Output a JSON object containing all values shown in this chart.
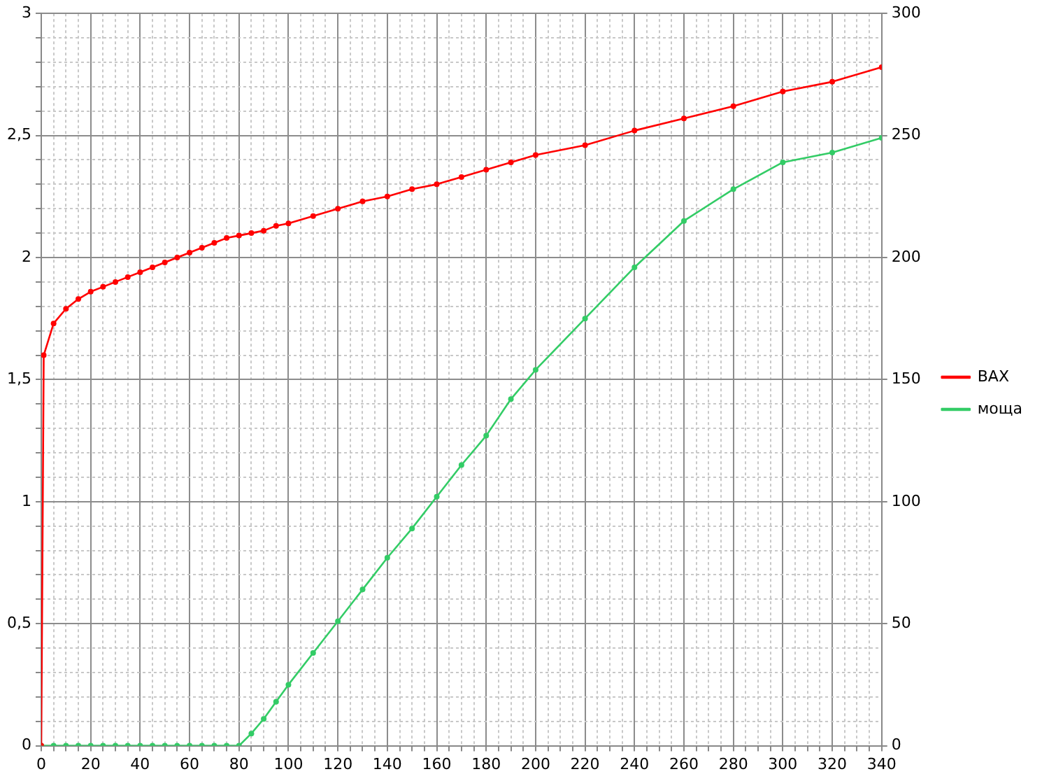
{
  "chart_data": {
    "type": "line",
    "legend": "right",
    "grid": true,
    "marker": "circle",
    "line_style": "solid",
    "xlim": [
      0,
      340
    ],
    "xticks": [
      0,
      {
        "value": 5,
        "label": null
      },
      {
        "value": 10,
        "label": null
      },
      {
        "value": 15,
        "label": null
      },
      20,
      {
        "value": 25,
        "label": null
      },
      {
        "value": 30,
        "label": null
      },
      {
        "value": 35,
        "label": null
      },
      40,
      {
        "value": 45,
        "label": null
      },
      {
        "value": 50,
        "label": null
      },
      {
        "value": 55,
        "label": null
      },
      60,
      {
        "value": 65,
        "label": null
      },
      {
        "value": 70,
        "label": null
      },
      {
        "value": 75,
        "label": null
      },
      80,
      {
        "value": 85,
        "label": null
      },
      {
        "value": 90,
        "label": null
      },
      {
        "value": 95,
        "label": null
      },
      100,
      {
        "value": 105,
        "label": null
      },
      {
        "value": 110,
        "label": null
      },
      {
        "value": 115,
        "label": null
      },
      120,
      {
        "value": 125,
        "label": null
      },
      {
        "value": 130,
        "label": null
      },
      {
        "value": 135,
        "label": null
      },
      140,
      {
        "value": 145,
        "label": null
      },
      {
        "value": 150,
        "label": null
      },
      {
        "value": 155,
        "label": null
      },
      160,
      {
        "value": 165,
        "label": null
      },
      {
        "value": 170,
        "label": null
      },
      {
        "value": 175,
        "label": null
      },
      180,
      {
        "value": 185,
        "label": null
      },
      {
        "value": 190,
        "label": null
      },
      {
        "value": 195,
        "label": null
      },
      200,
      {
        "value": 205,
        "label": null
      },
      {
        "value": 210,
        "label": null
      },
      {
        "value": 215,
        "label": null
      },
      220,
      {
        "value": 225,
        "label": null
      },
      {
        "value": 230,
        "label": null
      },
      {
        "value": 235,
        "label": null
      },
      240,
      {
        "value": 245,
        "label": null
      },
      {
        "value": 250,
        "label": null
      },
      {
        "value": 255,
        "label": null
      },
      260,
      {
        "value": 265,
        "label": null
      },
      {
        "value": 270,
        "label": null
      },
      {
        "value": 275,
        "label": null
      },
      280,
      {
        "value": 285,
        "label": null
      },
      {
        "value": 290,
        "label": null
      },
      {
        "value": 295,
        "label": null
      },
      300,
      {
        "value": 305,
        "label": null
      },
      {
        "value": 310,
        "label": null
      },
      {
        "value": 315,
        "label": null
      },
      320,
      {
        "value": 325,
        "label": null
      },
      {
        "value": 330,
        "label": null
      },
      {
        "value": 335,
        "label": null
      },
      340
    ],
    "ylim": [
      0,
      3
    ],
    "yticks": [
      0,
      {
        "value": 0.1,
        "label": null
      },
      {
        "value": 0.2,
        "label": null
      },
      {
        "value": 0.3,
        "label": null
      },
      {
        "value": 0.4,
        "label": null
      },
      {
        "value": 0.5,
        "label": "0,5"
      },
      {
        "value": 0.6,
        "label": null
      },
      {
        "value": 0.7,
        "label": null
      },
      {
        "value": 0.8,
        "label": null
      },
      {
        "value": 0.9,
        "label": null
      },
      1,
      {
        "value": 1.1,
        "label": null
      },
      {
        "value": 1.2,
        "label": null
      },
      {
        "value": 1.3,
        "label": null
      },
      {
        "value": 1.4,
        "label": null
      },
      {
        "value": 1.5,
        "label": "1,5"
      },
      {
        "value": 1.6,
        "label": null
      },
      {
        "value": 1.7,
        "label": null
      },
      {
        "value": 1.8,
        "label": null
      },
      {
        "value": 1.9,
        "label": null
      },
      2,
      {
        "value": 2.1,
        "label": null
      },
      {
        "value": 2.2,
        "label": null
      },
      {
        "value": 2.3,
        "label": null
      },
      {
        "value": 2.4,
        "label": null
      },
      {
        "value": 2.5,
        "label": "2,5"
      },
      {
        "value": 2.6,
        "label": null
      },
      {
        "value": 2.7,
        "label": null
      },
      {
        "value": 2.8,
        "label": null
      },
      {
        "value": 2.9,
        "label": null
      },
      3
    ],
    "y2lim": [
      0,
      300
    ],
    "y2ticks": [
      0,
      50,
      100,
      150,
      200,
      250,
      300
    ],
    "series": [
      {
        "name": "ВАХ",
        "color": "#ff0000",
        "x": [
          0,
          1,
          5,
          10,
          15,
          20,
          25,
          30,
          35,
          40,
          45,
          50,
          55,
          60,
          65,
          70,
          75,
          80,
          85,
          90,
          95,
          100,
          110,
          120,
          130,
          140,
          150,
          160,
          170,
          180,
          190,
          200,
          220,
          240,
          260,
          280,
          300,
          320,
          340
        ],
        "values": [
          0,
          1.6,
          1.73,
          1.79,
          1.83,
          1.86,
          1.88,
          1.9,
          1.92,
          1.94,
          1.96,
          1.98,
          2.0,
          2.02,
          2.04,
          2.06,
          2.08,
          2.09,
          2.1,
          2.11,
          2.13,
          2.14,
          2.17,
          2.2,
          2.23,
          2.25,
          2.28,
          2.3,
          2.33,
          2.36,
          2.39,
          2.42,
          2.46,
          2.52,
          2.57,
          2.62,
          2.68,
          2.72,
          2.78
        ]
      },
      {
        "name": "моща",
        "color": "#33cc66",
        "axis": "y2",
        "x": [
          0,
          5,
          10,
          15,
          20,
          25,
          30,
          35,
          40,
          45,
          50,
          55,
          60,
          65,
          70,
          75,
          80,
          85,
          90,
          95,
          100,
          110,
          120,
          130,
          140,
          150,
          160,
          170,
          180,
          190,
          200,
          220,
          240,
          260,
          280,
          300,
          320,
          340
        ],
        "values": [
          0,
          0,
          0,
          0,
          0,
          0,
          0,
          0,
          0,
          0,
          0,
          0,
          0,
          0,
          0,
          0,
          0,
          5,
          11,
          18,
          25,
          38,
          51,
          64,
          77,
          89,
          102,
          115,
          127,
          142,
          154,
          175,
          196,
          215,
          228,
          239,
          243,
          249
        ]
      }
    ]
  }
}
